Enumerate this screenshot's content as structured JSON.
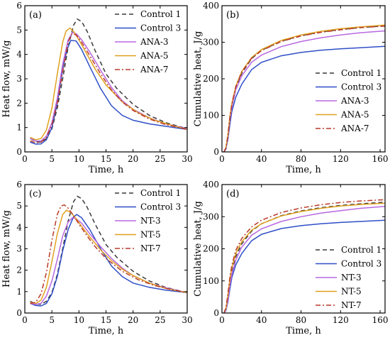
{
  "chart_data": [
    {
      "panel_label": "(a)",
      "type": "line",
      "xlabel": "Time, h",
      "ylabel": "Heat flow, mW/g",
      "xlim": [
        0,
        30
      ],
      "ylim": [
        0,
        6
      ],
      "xticks": [
        0,
        5,
        10,
        15,
        20,
        25,
        30
      ],
      "yticks": [
        0,
        1,
        2,
        3,
        4,
        5,
        6
      ],
      "legend_position": "top-right",
      "series": [
        {
          "name": "Control 1",
          "color": "#3a3a3a",
          "dash": "6,4",
          "x": [
            1,
            2,
            3,
            4,
            5,
            6,
            7,
            8,
            9,
            9.7,
            10.5,
            11.5,
            13,
            15,
            17,
            20,
            23,
            26,
            30
          ],
          "y": [
            0.55,
            0.42,
            0.4,
            0.55,
            0.95,
            1.8,
            3.0,
            4.3,
            5.2,
            5.45,
            5.35,
            4.95,
            4.15,
            3.2,
            2.6,
            1.95,
            1.5,
            1.2,
            0.95
          ]
        },
        {
          "name": "Control 3",
          "color": "#2f4fc7",
          "dash": "",
          "x": [
            1,
            2,
            3,
            4,
            5,
            6,
            7,
            7.8,
            8.5,
            9.5,
            10.5,
            12,
            14,
            16,
            18,
            20,
            23,
            26,
            30
          ],
          "y": [
            0.4,
            0.32,
            0.33,
            0.5,
            1.0,
            2.0,
            3.4,
            4.2,
            4.58,
            4.55,
            4.2,
            3.5,
            2.6,
            1.9,
            1.5,
            1.3,
            1.15,
            1.05,
            0.92
          ]
        },
        {
          "name": "ANA-3",
          "color": "#b868e0",
          "dash": "",
          "x": [
            1,
            2,
            3,
            4,
            5,
            6,
            7,
            8,
            8.8,
            9.5,
            10.5,
            12,
            14,
            16,
            18,
            20,
            23,
            26,
            30
          ],
          "y": [
            0.55,
            0.45,
            0.45,
            0.65,
            1.2,
            2.2,
            3.6,
            4.6,
            4.9,
            4.85,
            4.6,
            4.1,
            3.35,
            2.65,
            2.1,
            1.75,
            1.4,
            1.15,
            0.95
          ]
        },
        {
          "name": "ANA-5",
          "color": "#e0a020",
          "dash": "",
          "x": [
            1,
            2,
            3,
            4,
            5,
            6,
            7,
            7.6,
            8.3,
            9,
            10,
            11.5,
            13,
            15,
            18,
            21,
            24,
            27,
            30
          ],
          "y": [
            0.6,
            0.5,
            0.55,
            0.9,
            1.8,
            3.2,
            4.5,
            4.95,
            5.08,
            4.95,
            4.6,
            4.0,
            3.4,
            2.75,
            2.05,
            1.6,
            1.3,
            1.1,
            0.92
          ]
        },
        {
          "name": "ANA-7",
          "color": "#b83a2a",
          "dash": "7,3,2,3",
          "x": [
            1,
            2,
            3,
            4,
            5,
            6,
            7,
            8,
            8.7,
            9.5,
            10.5,
            12,
            14,
            16,
            18,
            20,
            23,
            26,
            30
          ],
          "y": [
            0.45,
            0.38,
            0.4,
            0.6,
            1.1,
            2.0,
            3.3,
            4.5,
            4.85,
            4.8,
            4.5,
            3.95,
            3.2,
            2.55,
            2.05,
            1.7,
            1.35,
            1.12,
            0.93
          ]
        }
      ]
    },
    {
      "panel_label": "(b)",
      "type": "line",
      "xlabel": "Time, h",
      "ylabel": "Cumulative heat, J/g",
      "xlim": [
        0,
        165
      ],
      "ylim": [
        0,
        400
      ],
      "xticks": [
        0,
        40,
        80,
        120,
        160
      ],
      "yticks": [
        0,
        100,
        200,
        300,
        400
      ],
      "legend_position": "bottom-right",
      "series": [
        {
          "name": "Control 1",
          "color": "#3a3a3a",
          "dash": "6,4",
          "x": [
            2,
            4,
            6,
            8,
            10,
            14,
            20,
            30,
            40,
            60,
            80,
            100,
            120,
            140,
            165
          ],
          "y": [
            0,
            10,
            40,
            90,
            125,
            175,
            215,
            255,
            278,
            303,
            318,
            328,
            335,
            340,
            345
          ]
        },
        {
          "name": "Control 3",
          "color": "#2f4fc7",
          "dash": "",
          "x": [
            2,
            4,
            6,
            8,
            10,
            14,
            20,
            30,
            40,
            60,
            80,
            100,
            120,
            140,
            165
          ],
          "y": [
            0,
            8,
            35,
            75,
            110,
            150,
            185,
            225,
            245,
            263,
            272,
            278,
            282,
            285,
            289
          ]
        },
        {
          "name": "ANA-3",
          "color": "#b868e0",
          "dash": "",
          "x": [
            2,
            4,
            6,
            8,
            10,
            14,
            20,
            30,
            40,
            60,
            80,
            100,
            120,
            140,
            165
          ],
          "y": [
            0,
            10,
            40,
            88,
            122,
            170,
            208,
            245,
            265,
            288,
            302,
            312,
            320,
            326,
            331
          ]
        },
        {
          "name": "ANA-5",
          "color": "#e0a020",
          "dash": "",
          "x": [
            2,
            4,
            6,
            8,
            10,
            14,
            20,
            30,
            40,
            60,
            80,
            100,
            120,
            140,
            165
          ],
          "y": [
            0,
            12,
            48,
            98,
            132,
            180,
            220,
            258,
            280,
            305,
            320,
            330,
            337,
            342,
            347
          ]
        },
        {
          "name": "ANA-7",
          "color": "#b83a2a",
          "dash": "7,3,2,3",
          "x": [
            2,
            4,
            6,
            8,
            10,
            14,
            20,
            30,
            40,
            60,
            80,
            100,
            120,
            140,
            165
          ],
          "y": [
            0,
            11,
            44,
            95,
            130,
            178,
            218,
            256,
            277,
            302,
            317,
            327,
            334,
            340,
            344
          ]
        }
      ]
    },
    {
      "panel_label": "(c)",
      "type": "line",
      "xlabel": "Time, h",
      "ylabel": "Heat flow, mW/g",
      "xlim": [
        0,
        30
      ],
      "ylim": [
        0,
        6
      ],
      "xticks": [
        0,
        5,
        10,
        15,
        20,
        25,
        30
      ],
      "yticks": [
        0,
        1,
        2,
        3,
        4,
        5,
        6
      ],
      "legend_position": "top-right",
      "series": [
        {
          "name": "Control 1",
          "color": "#3a3a3a",
          "dash": "6,4",
          "x": [
            1,
            2,
            3,
            4,
            5,
            6,
            7,
            8,
            9,
            9.7,
            10.5,
            11.5,
            13,
            15,
            17,
            20,
            23,
            26,
            30
          ],
          "y": [
            0.55,
            0.42,
            0.4,
            0.55,
            0.95,
            1.8,
            3.0,
            4.3,
            5.2,
            5.45,
            5.35,
            4.95,
            4.15,
            3.2,
            2.6,
            1.95,
            1.5,
            1.2,
            0.95
          ]
        },
        {
          "name": "Control 3",
          "color": "#2f4fc7",
          "dash": "",
          "x": [
            1,
            2,
            3,
            4,
            5,
            6,
            7,
            8,
            9,
            9.6,
            10.5,
            12,
            14,
            16,
            18,
            20,
            23,
            26,
            30
          ],
          "y": [
            0.45,
            0.35,
            0.33,
            0.45,
            0.9,
            1.7,
            2.9,
            3.9,
            4.5,
            4.6,
            4.45,
            3.9,
            3.0,
            2.2,
            1.7,
            1.4,
            1.2,
            1.07,
            0.95
          ]
        },
        {
          "name": "NT-3",
          "color": "#b868e0",
          "dash": "",
          "x": [
            1,
            2,
            3,
            4,
            5,
            6,
            7,
            8,
            8.8,
            9.5,
            10.5,
            12,
            14,
            16,
            18,
            20,
            23,
            26,
            30
          ],
          "y": [
            0.45,
            0.4,
            0.45,
            0.8,
            1.5,
            2.5,
            3.6,
            4.25,
            4.45,
            4.4,
            4.2,
            3.7,
            3.1,
            2.55,
            2.1,
            1.75,
            1.4,
            1.18,
            0.95
          ]
        },
        {
          "name": "NT-5",
          "color": "#e0a020",
          "dash": "",
          "x": [
            1,
            2,
            3,
            4,
            5,
            6,
            7,
            7.7,
            8.5,
            9.5,
            10.5,
            12,
            14,
            16,
            18,
            20,
            23,
            26,
            30
          ],
          "y": [
            0.5,
            0.45,
            0.6,
            1.2,
            2.4,
            3.7,
            4.6,
            4.8,
            4.7,
            4.4,
            4.05,
            3.55,
            2.95,
            2.45,
            2.05,
            1.75,
            1.4,
            1.15,
            0.95
          ]
        },
        {
          "name": "NT-7",
          "color": "#b83a2a",
          "dash": "7,3,2,3",
          "x": [
            1,
            2,
            3,
            4,
            5,
            6,
            6.7,
            7.3,
            8,
            9,
            10,
            11.5,
            13,
            15,
            18,
            21,
            24,
            27,
            30
          ],
          "y": [
            0.45,
            0.5,
            0.9,
            1.9,
            3.4,
            4.6,
            5.0,
            5.05,
            4.9,
            4.55,
            4.15,
            3.6,
            3.1,
            2.55,
            1.95,
            1.55,
            1.28,
            1.1,
            0.95
          ]
        }
      ]
    },
    {
      "panel_label": "(d)",
      "type": "line",
      "xlabel": "Time, h",
      "ylabel": "Cumulative heat, J/g",
      "xlim": [
        0,
        165
      ],
      "ylim": [
        0,
        400
      ],
      "xticks": [
        0,
        40,
        80,
        120,
        160
      ],
      "yticks": [
        0,
        100,
        200,
        300,
        400
      ],
      "legend_position": "bottom-right",
      "series": [
        {
          "name": "Control 1",
          "color": "#3a3a3a",
          "dash": "6,4",
          "x": [
            2,
            4,
            6,
            8,
            10,
            14,
            20,
            30,
            40,
            60,
            80,
            100,
            120,
            140,
            165
          ],
          "y": [
            0,
            10,
            40,
            90,
            125,
            175,
            215,
            255,
            278,
            303,
            318,
            328,
            335,
            340,
            345
          ]
        },
        {
          "name": "Control 3",
          "color": "#2f4fc7",
          "dash": "",
          "x": [
            2,
            4,
            6,
            8,
            10,
            14,
            20,
            30,
            40,
            60,
            80,
            100,
            120,
            140,
            165
          ],
          "y": [
            0,
            8,
            35,
            75,
            110,
            150,
            185,
            225,
            245,
            263,
            272,
            278,
            282,
            285,
            289
          ]
        },
        {
          "name": "NT-3",
          "color": "#b868e0",
          "dash": "",
          "x": [
            2,
            4,
            6,
            8,
            10,
            14,
            20,
            30,
            40,
            60,
            80,
            100,
            120,
            140,
            165
          ],
          "y": [
            0,
            10,
            40,
            88,
            120,
            165,
            205,
            242,
            262,
            285,
            300,
            311,
            319,
            326,
            332
          ]
        },
        {
          "name": "NT-5",
          "color": "#e0a020",
          "dash": "",
          "x": [
            2,
            4,
            6,
            8,
            10,
            14,
            20,
            30,
            40,
            60,
            80,
            100,
            120,
            140,
            165
          ],
          "y": [
            0,
            14,
            55,
            105,
            140,
            185,
            222,
            258,
            278,
            302,
            316,
            326,
            333,
            338,
            342
          ]
        },
        {
          "name": "NT-7",
          "color": "#b83a2a",
          "dash": "7,3,2,3",
          "x": [
            2,
            4,
            6,
            8,
            10,
            14,
            20,
            30,
            40,
            60,
            80,
            100,
            120,
            140,
            165
          ],
          "y": [
            0,
            16,
            60,
            112,
            148,
            195,
            232,
            268,
            289,
            313,
            327,
            337,
            344,
            349,
            353
          ]
        }
      ]
    }
  ]
}
